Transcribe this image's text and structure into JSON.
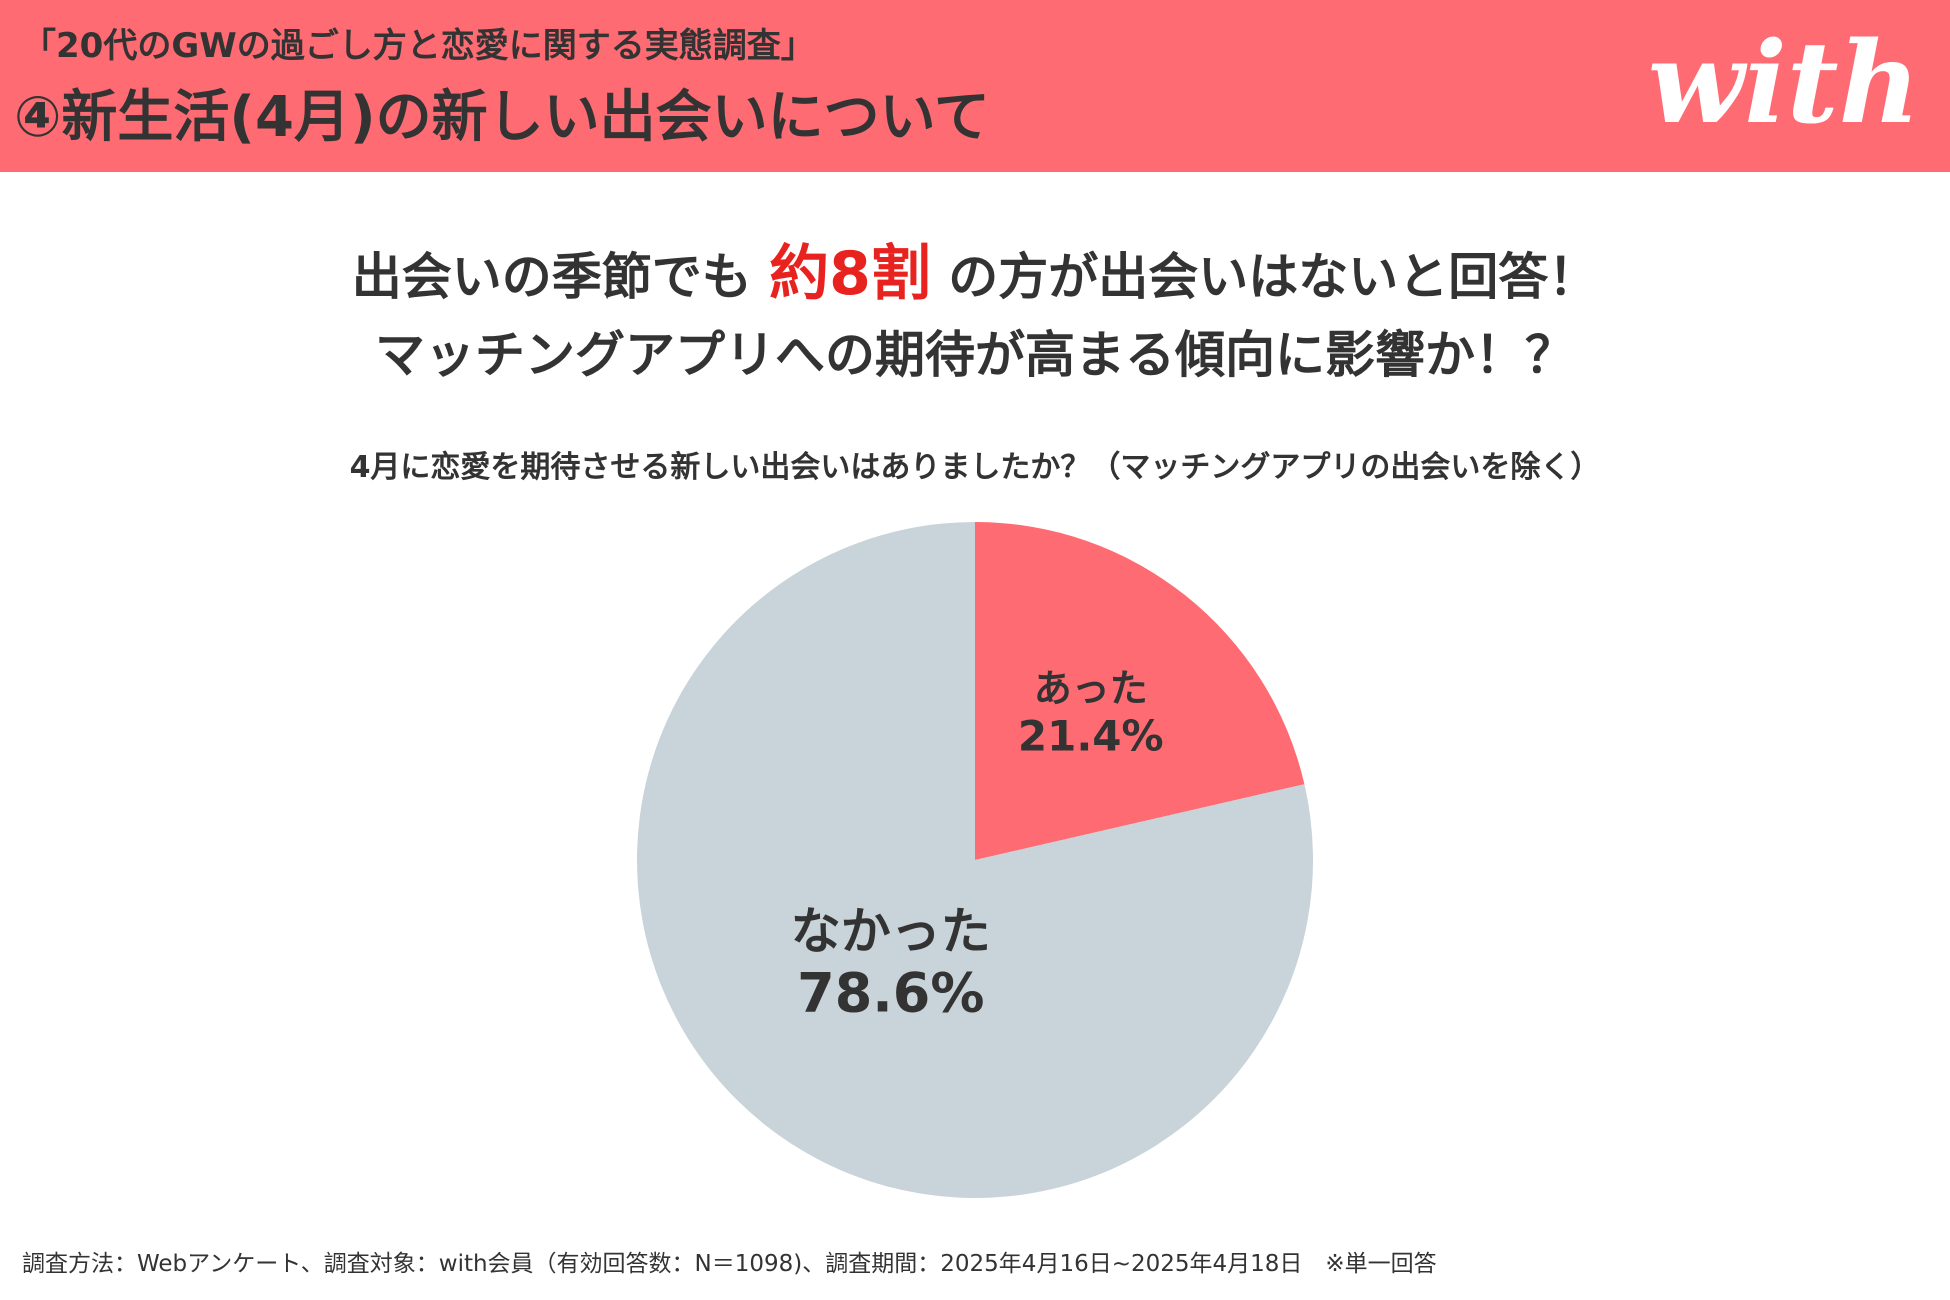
{
  "header": {
    "subtitle": "「20代のGWの過ごし方と恋愛に関する実態調査」",
    "title": "④新生活(4月)の新しい出会いについて",
    "logo": "with"
  },
  "headline": {
    "line1_pre": "出会いの季節でも",
    "line1_emphasis": "約8割",
    "line1_post": "の方が出会いはないと回答！",
    "line2": "マッチングアプリへの期待が高まる傾向に影響か！？"
  },
  "question": "4月に恋愛を期待させる新しい出会いはありましたか？（マッチングアプリの出会いを除く）",
  "chart_data": {
    "type": "pie",
    "title": "4月に恋愛を期待させる新しい出会いはありましたか？（マッチングアプリの出会いを除く）",
    "slices": [
      {
        "label": "あった",
        "value": 21.4,
        "value_label": "21.4%",
        "color": "#FF6B72"
      },
      {
        "label": "なかった",
        "value": 78.6,
        "value_label": "78.6%",
        "color": "#C8D3DA"
      }
    ]
  },
  "footnote": "調査方法：Webアンケート、調査対象：with会員（有効回答数：N＝1098)、調査期間：2025年4月16日~2025年4月18日　※単一回答",
  "colors": {
    "brand": "#FF6B72",
    "emphasis": "#E8231F",
    "text": "#333333"
  }
}
